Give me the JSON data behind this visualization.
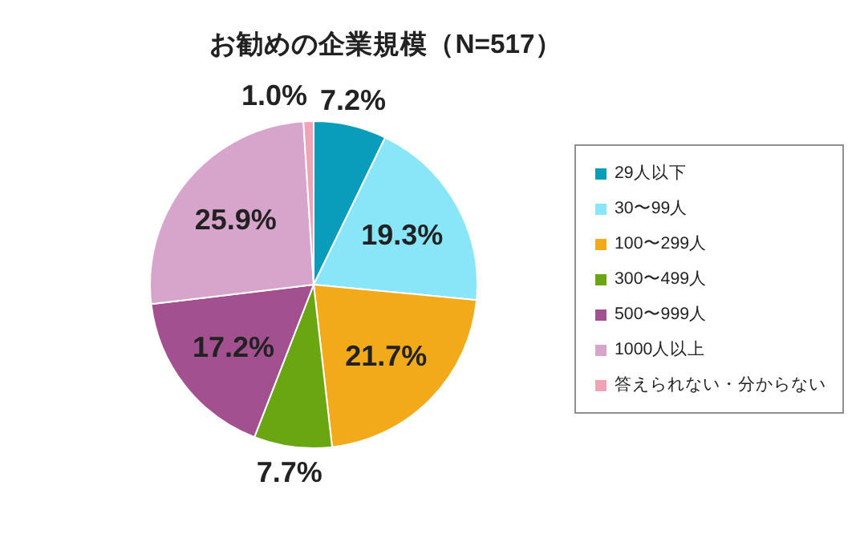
{
  "chart_data": {
    "type": "pie",
    "title": "お勧めの企業規模（N=517）",
    "categories": [
      "29人以下",
      "30〜99人",
      "100〜299人",
      "300〜499人",
      "500〜999人",
      "1000人以上",
      "答えられない・分からない"
    ],
    "values": [
      7.2,
      19.3,
      21.7,
      7.7,
      17.2,
      25.9,
      1.0
    ],
    "colors": [
      "#0a9dbb",
      "#88e6f8",
      "#f2a91a",
      "#6aa512",
      "#a2508f",
      "#d7a5cb",
      "#f0a2b6"
    ],
    "value_labels": [
      "7.2%",
      "19.3%",
      "21.7%",
      "7.7%",
      "17.2%",
      "25.9%",
      "1.0%"
    ],
    "legend": "right"
  }
}
